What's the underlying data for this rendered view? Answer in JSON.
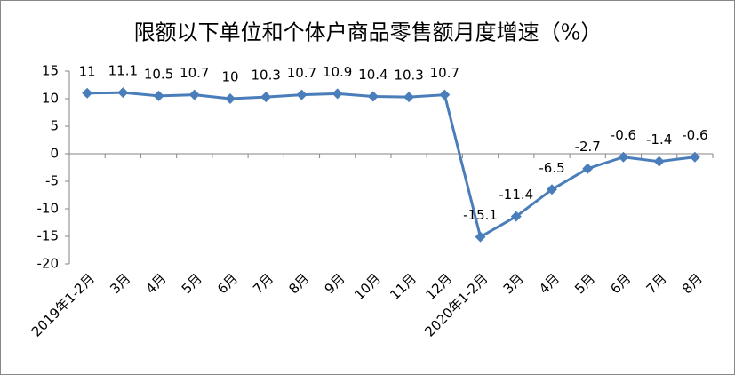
{
  "chart_data": {
    "type": "line",
    "title": "限额以下单位和个体户商品零售额月度增速（%）",
    "categories": [
      "2019年1-2月",
      "3月",
      "4月",
      "5月",
      "6月",
      "7月",
      "8月",
      "9月",
      "10月",
      "11月",
      "12月",
      "2020年1-2月",
      "3月",
      "4月",
      "5月",
      "6月",
      "7月",
      "8月"
    ],
    "series": [
      {
        "color": "#4a7ebb",
        "values": [
          11,
          11.1,
          10.5,
          10.7,
          10,
          10.3,
          10.7,
          10.9,
          10.4,
          10.3,
          10.7,
          -15.1,
          -11.4,
          -6.5,
          -2.7,
          -0.6,
          -1.4,
          -0.6
        ]
      }
    ],
    "ylim": [
      -20,
      15
    ],
    "yticks": [
      -20,
      -15,
      -10,
      -5,
      0,
      5,
      10,
      15
    ],
    "grid": false
  }
}
